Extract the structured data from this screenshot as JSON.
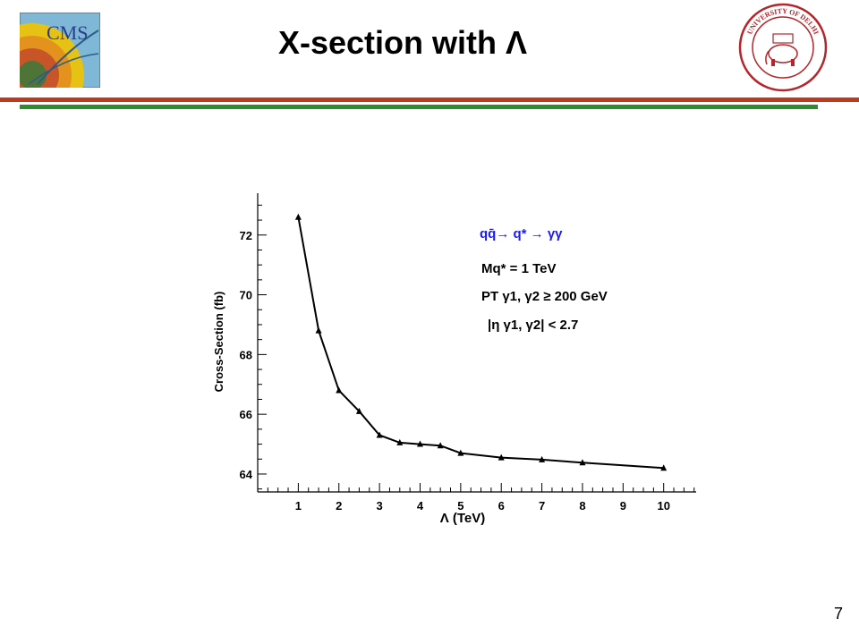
{
  "slide": {
    "title": "X-section with Λ",
    "page_number": "7",
    "colors": {
      "rule_top": "#c0391b",
      "rule_bottom": "#2e8b2e"
    }
  },
  "logos": {
    "left": {
      "icon": "cms-logo",
      "text": "CMS"
    },
    "right": {
      "icon": "university-of-delhi-seal",
      "text": "UNIVERSITY OF DELHI"
    }
  },
  "chart_data": {
    "type": "line",
    "title": "",
    "xlabel": "Λ (TeV)",
    "ylabel": "Cross-Section (fb)",
    "xlim": [
      0,
      10.8
    ],
    "ylim": [
      63.4,
      73.4
    ],
    "x_ticks": [
      1,
      2,
      3,
      4,
      5,
      6,
      7,
      8,
      9,
      10
    ],
    "y_ticks": [
      64,
      66,
      68,
      70,
      72
    ],
    "grid": false,
    "marker": "triangle",
    "series": [
      {
        "x": [
          1,
          1.5,
          2,
          2.5,
          3,
          3.5,
          4,
          4.5,
          5,
          6,
          7,
          8,
          10
        ],
        "y": [
          72.6,
          68.8,
          66.8,
          66.1,
          65.3,
          65.05,
          65.0,
          64.95,
          64.7,
          64.55,
          64.48,
          64.38,
          64.2
        ]
      }
    ],
    "annotations": {
      "process": "qq̄→ q* → γγ",
      "mass_cut": "Mq* = 1 TeV",
      "pt_cut": "PT γ1, γ2 ≥ 200 GeV",
      "eta_cut": "|η γ1, γ2| < 2.7"
    }
  }
}
